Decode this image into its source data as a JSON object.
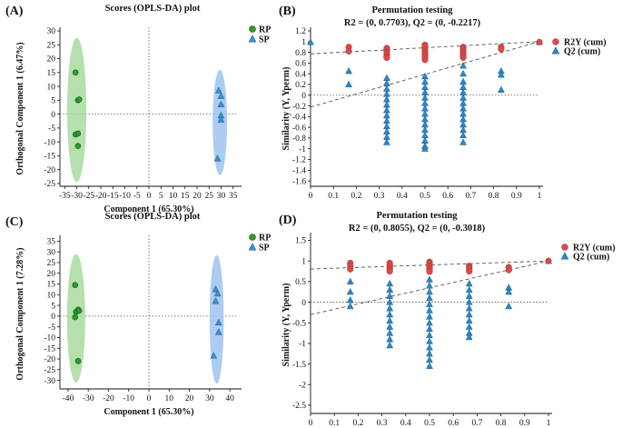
{
  "chart_data": [
    {
      "panel": "(A)",
      "type": "scatter",
      "title": "Scores (OPLS-DA) plot",
      "xlabel": "Component 1 (65.30%)",
      "ylabel": "Orthogonal Component 1 (6.47%)",
      "xlim": [
        -37,
        37
      ],
      "ylim": [
        -26,
        30
      ],
      "xticks": [
        -35,
        -30,
        -25,
        -20,
        -15,
        -10,
        -5,
        0,
        5,
        10,
        15,
        20,
        25,
        30,
        35
      ],
      "xtick_labels": [
        "-35",
        "-30",
        "-25",
        "-20",
        "-15",
        "-10",
        "-5",
        "0",
        "5",
        "10",
        "15",
        "20",
        "25",
        "30",
        "35"
      ],
      "yticks": [
        30,
        25,
        20,
        15,
        10,
        5,
        0,
        -5,
        -10,
        -15,
        -20,
        -25
      ],
      "ytick_labels": [
        "30",
        "25",
        "20",
        "15",
        "10",
        "5",
        "0",
        "-5",
        "-10",
        "-15",
        "-20",
        "-25"
      ],
      "legend": [
        "RP",
        "SP"
      ],
      "series": [
        {
          "name": "RP",
          "color": "#3ea83e",
          "points": [
            [
              -30.5,
              15
            ],
            [
              -29.5,
              5
            ],
            [
              -29,
              5.3
            ],
            [
              -30.5,
              -7.3
            ],
            [
              -29.5,
              -7
            ],
            [
              -29.5,
              -11.5
            ]
          ],
          "ellipse": {
            "cx": -30,
            "cy": 1.5,
            "rx": 4,
            "ry": 26
          }
        },
        {
          "name": "SP",
          "color": "#3a8fd0",
          "points": [
            [
              29,
              8.5
            ],
            [
              30,
              6.5
            ],
            [
              30,
              3.5
            ],
            [
              30,
              -0.5
            ],
            [
              30,
              -2
            ],
            [
              28.5,
              -16
            ]
          ],
          "ellipse": {
            "cx": 29.5,
            "cy": -3,
            "rx": 3,
            "ry": 19
          }
        }
      ]
    },
    {
      "panel": "(B)",
      "type": "scatter",
      "title": "Permutation testing",
      "subtitle": "R2 = (0, 0.7703), Q2 = (0, -0.2217)",
      "xlabel": "",
      "ylabel": "Similarity (Y, Yperm)",
      "xlim": [
        0,
        1
      ],
      "ylim": [
        -1.7,
        1.2
      ],
      "xticks": [
        0,
        0.1,
        0.2,
        0.3,
        0.4,
        0.5,
        0.6,
        0.7,
        0.8,
        0.9,
        1
      ],
      "xtick_labels": [
        "0",
        "0.1",
        "0.2",
        "0.3",
        "0.4",
        "0.5",
        "0.6",
        "0.7",
        "0.8",
        "0.9",
        "1"
      ],
      "yticks": [
        1.2,
        1,
        0.8,
        0.6,
        0.4,
        0.2,
        0,
        -0.2,
        -0.4,
        -0.6,
        -0.8,
        -1,
        -1.2,
        -1.4,
        -1.6
      ],
      "ytick_labels": [
        "1.2",
        "1",
        "0.8",
        "0.6",
        "0.4",
        "0.2",
        "0",
        "-0.2",
        "-0.4",
        "-0.6",
        "-0.8",
        "-1",
        "-1.2",
        "-1.4",
        "-1.6"
      ],
      "legend": [
        "R2Y (cum)",
        "Q2 (cum)"
      ],
      "r2_line": {
        "intercept": 0.7703,
        "end": [
          1,
          1
        ]
      },
      "q2_line": {
        "intercept": -0.2217,
        "end": [
          1,
          1
        ]
      },
      "r2_points": {
        "0.167": [
          0.9,
          0.82
        ],
        "0.333": [
          0.88,
          0.84,
          0.8,
          0.76,
          0.72,
          0.7
        ],
        "0.5": [
          0.94,
          0.9,
          0.85,
          0.82,
          0.78,
          0.74,
          0.7,
          0.66
        ],
        "0.667": [
          0.9,
          0.86,
          0.82,
          0.78,
          0.74,
          0.7
        ],
        "0.833": [
          0.9,
          0.86
        ],
        "1": [
          0.99
        ]
      },
      "q2_points": {
        "0.167": [
          0.45,
          0.2
        ],
        "0.333": [
          0.32,
          0.22,
          0.12,
          0.02,
          -0.08,
          -0.18,
          -0.28,
          -0.38,
          -0.48,
          -0.58,
          -0.68,
          -0.78,
          -0.88
        ],
        "0.5": [
          0.35,
          0.25,
          0.15,
          0.05,
          -0.05,
          -0.15,
          -0.25,
          -0.35,
          -0.45,
          -0.55,
          -0.65,
          -0.75,
          -0.85,
          -0.95,
          -1.0
        ],
        "0.667": [
          0.55,
          0.4,
          0.25,
          0.15,
          0.05,
          -0.05,
          -0.15,
          -0.25,
          -0.35,
          -0.45,
          -0.55,
          -0.65,
          -0.75,
          -0.88
        ],
        "0.833": [
          0.45,
          0.38,
          0.1
        ],
        "1": [
          0.99
        ],
        "0": [
          0.99
        ]
      },
      "colors": {
        "r2": "#d94b4b",
        "q2": "#2f86c7"
      }
    },
    {
      "panel": "(C)",
      "type": "scatter",
      "title": "Scores (OPLS-DA) plot",
      "xlabel": "Component 1 (65.30%)",
      "ylabel": "Orthogonal Component 1 (7.28%)",
      "xlim": [
        -44,
        44
      ],
      "ylim": [
        -34,
        36
      ],
      "xticks": [
        -40,
        -30,
        -20,
        -10,
        0,
        10,
        20,
        30,
        40
      ],
      "xtick_labels": [
        "-40",
        "-30",
        "-20",
        "-10",
        "0",
        "10",
        "20",
        "30",
        "40"
      ],
      "yticks": [
        35,
        30,
        25,
        20,
        15,
        10,
        5,
        0,
        -5,
        -10,
        -15,
        -20,
        -25,
        -30
      ],
      "ytick_labels": [
        "35",
        "30",
        "25",
        "20",
        "15",
        "10",
        "5",
        "0",
        "-5",
        "-10",
        "-15",
        "-20",
        "-25",
        "-30"
      ],
      "legend": [
        "RP",
        "SP"
      ],
      "series": [
        {
          "name": "RP",
          "color": "#3ea83e",
          "points": [
            [
              -36.5,
              14.5
            ],
            [
              -36,
              2
            ],
            [
              -35,
              3
            ],
            [
              -34.5,
              2.5
            ],
            [
              -36.5,
              -0.5
            ],
            [
              -35,
              -21
            ]
          ],
          "ellipse": {
            "cx": -36,
            "cy": -1,
            "rx": 4.5,
            "ry": 30
          }
        },
        {
          "name": "SP",
          "color": "#3a8fd0",
          "points": [
            [
              33,
              12.5
            ],
            [
              34,
              10.5
            ],
            [
              33,
              7
            ],
            [
              34.5,
              -3
            ],
            [
              34.5,
              -7.5
            ],
            [
              32,
              -18.5
            ]
          ],
          "ellipse": {
            "cx": 33.5,
            "cy": -1.5,
            "rx": 3.5,
            "ry": 30
          }
        }
      ]
    },
    {
      "panel": "(D)",
      "type": "scatter",
      "title": "Permutation testing",
      "subtitle": "R2 = (0, 0.8055), Q2 = (0, -0.3018)",
      "xlabel": "",
      "ylabel": "Similarity (Y, Yperm)",
      "xlim": [
        0,
        1
      ],
      "ylim": [
        -2.7,
        1.6
      ],
      "xticks": [
        0,
        0.1,
        0.2,
        0.3,
        0.4,
        0.5,
        0.6,
        0.7,
        0.8,
        0.9,
        1
      ],
      "xtick_labels": [
        "0",
        "0.1",
        "0.2",
        "0.3",
        "0.4",
        "0.5",
        "0.6",
        "0.7",
        "0.8",
        "0.9",
        "1"
      ],
      "yticks": [
        1.5,
        1,
        0.5,
        0,
        -0.5,
        -1,
        -1.5,
        -2,
        -2.5
      ],
      "ytick_labels": [
        "1.5",
        "1",
        "0.5",
        "0",
        "-0.5",
        "-1",
        "-1.5",
        "-2",
        "-2.5"
      ],
      "legend": [
        "R2Y (cum)",
        "Q2 (cum)"
      ],
      "r2_line": {
        "intercept": 0.8055,
        "end": [
          1,
          1
        ]
      },
      "q2_line": {
        "intercept": -0.3018,
        "end": [
          1,
          1
        ]
      },
      "r2_points": {
        "0.167": [
          0.95,
          0.88,
          0.8
        ],
        "0.333": [
          0.95,
          0.9,
          0.85,
          0.8,
          0.75
        ],
        "0.5": [
          0.98,
          0.94,
          0.9,
          0.86,
          0.82,
          0.78,
          0.74
        ],
        "0.667": [
          0.88,
          0.84,
          0.8,
          0.75
        ],
        "0.833": [
          0.85,
          0.78
        ],
        "1": [
          1.0
        ]
      },
      "q2_points": {
        "0.167": [
          0.5,
          0.25,
          0.05,
          -0.1
        ],
        "0.333": [
          0.45,
          0.3,
          0.15,
          0.0,
          -0.15,
          -0.3,
          -0.45,
          -0.6,
          -0.75,
          -0.9,
          -1.05
        ],
        "0.5": [
          0.55,
          0.4,
          0.25,
          0.1,
          -0.05,
          -0.2,
          -0.35,
          -0.5,
          -0.65,
          -0.8,
          -0.95,
          -1.1,
          -1.25,
          -1.4,
          -1.55
        ],
        "0.667": [
          0.45,
          0.3,
          0.15,
          0.0,
          -0.15,
          -0.3,
          -0.45,
          -0.6,
          -0.75,
          -0.85
        ],
        "0.833": [
          0.35,
          0.25,
          -0.1
        ],
        "1": [
          1.0
        ]
      },
      "colors": {
        "r2": "#d94b4b",
        "q2": "#2f86c7"
      }
    }
  ]
}
